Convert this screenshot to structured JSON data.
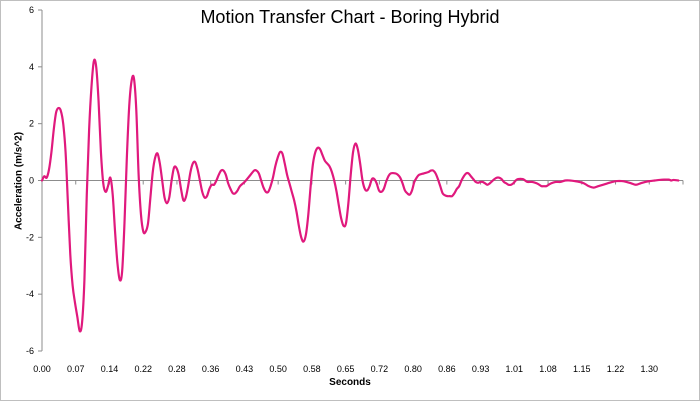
{
  "chart_data": {
    "type": "line",
    "title": "Motion Transfer Chart - Boring Hybrid",
    "xlabel": "Seconds",
    "ylabel": "Acceleration (m/s^2)",
    "ylim": [
      -6,
      6
    ],
    "xlim": [
      0,
      1.36
    ],
    "yticks": [
      "6",
      "4",
      "2",
      "0",
      "-2",
      "-4",
      "-6"
    ],
    "xticks": [
      "0.00",
      "0.07",
      "0.14",
      "0.22",
      "0.28",
      "0.36",
      "0.43",
      "0.50",
      "0.58",
      "0.65",
      "0.72",
      "0.80",
      "0.86",
      "0.93",
      "1.01",
      "1.08",
      "1.15",
      "1.22",
      "1.30"
    ],
    "grid": false,
    "line_color": "#e0197d",
    "series": [
      {
        "points": [
          [
            0.0,
            0.0
          ],
          [
            0.005,
            0.15
          ],
          [
            0.01,
            0.1
          ],
          [
            0.015,
            0.4
          ],
          [
            0.02,
            1.0
          ],
          [
            0.025,
            1.8
          ],
          [
            0.03,
            2.4
          ],
          [
            0.035,
            2.55
          ],
          [
            0.04,
            2.45
          ],
          [
            0.045,
            2.0
          ],
          [
            0.05,
            1.0
          ],
          [
            0.055,
            -0.8
          ],
          [
            0.06,
            -2.6
          ],
          [
            0.065,
            -3.7
          ],
          [
            0.07,
            -4.3
          ],
          [
            0.075,
            -4.8
          ],
          [
            0.08,
            -5.3
          ],
          [
            0.085,
            -5.0
          ],
          [
            0.09,
            -3.5
          ],
          [
            0.095,
            -0.5
          ],
          [
            0.1,
            1.8
          ],
          [
            0.105,
            3.3
          ],
          [
            0.11,
            4.2
          ],
          [
            0.115,
            4.0
          ],
          [
            0.12,
            2.8
          ],
          [
            0.125,
            1.0
          ],
          [
            0.13,
            -0.1
          ],
          [
            0.135,
            -0.4
          ],
          [
            0.14,
            -0.2
          ],
          [
            0.145,
            0.1
          ],
          [
            0.15,
            -0.5
          ],
          [
            0.155,
            -1.8
          ],
          [
            0.16,
            -2.9
          ],
          [
            0.165,
            -3.5
          ],
          [
            0.17,
            -3.2
          ],
          [
            0.175,
            -1.5
          ],
          [
            0.18,
            0.8
          ],
          [
            0.185,
            2.6
          ],
          [
            0.19,
            3.5
          ],
          [
            0.195,
            3.6
          ],
          [
            0.2,
            2.5
          ],
          [
            0.205,
            0.2
          ],
          [
            0.21,
            -1.2
          ],
          [
            0.215,
            -1.8
          ],
          [
            0.22,
            -1.8
          ],
          [
            0.225,
            -1.5
          ],
          [
            0.23,
            -0.6
          ],
          [
            0.235,
            0.3
          ],
          [
            0.24,
            0.8
          ],
          [
            0.245,
            0.95
          ],
          [
            0.25,
            0.6
          ],
          [
            0.255,
            0.0
          ],
          [
            0.26,
            -0.6
          ],
          [
            0.265,
            -0.8
          ],
          [
            0.27,
            -0.6
          ],
          [
            0.275,
            0.0
          ],
          [
            0.28,
            0.45
          ],
          [
            0.285,
            0.45
          ],
          [
            0.29,
            0.2
          ],
          [
            0.295,
            -0.3
          ],
          [
            0.3,
            -0.7
          ],
          [
            0.305,
            -0.6
          ],
          [
            0.31,
            -0.2
          ],
          [
            0.315,
            0.3
          ],
          [
            0.32,
            0.6
          ],
          [
            0.325,
            0.65
          ],
          [
            0.33,
            0.4
          ],
          [
            0.335,
            0.0
          ],
          [
            0.34,
            -0.4
          ],
          [
            0.345,
            -0.6
          ],
          [
            0.35,
            -0.55
          ],
          [
            0.355,
            -0.3
          ],
          [
            0.36,
            -0.15
          ],
          [
            0.365,
            -0.15
          ],
          [
            0.37,
            0.0
          ],
          [
            0.375,
            0.2
          ],
          [
            0.38,
            0.35
          ],
          [
            0.385,
            0.35
          ],
          [
            0.39,
            0.2
          ],
          [
            0.395,
            -0.1
          ],
          [
            0.4,
            -0.3
          ],
          [
            0.405,
            -0.45
          ],
          [
            0.41,
            -0.45
          ],
          [
            0.415,
            -0.35
          ],
          [
            0.42,
            -0.2
          ],
          [
            0.43,
            -0.05
          ],
          [
            0.44,
            0.15
          ],
          [
            0.45,
            0.35
          ],
          [
            0.455,
            0.35
          ],
          [
            0.46,
            0.25
          ],
          [
            0.465,
            0.0
          ],
          [
            0.47,
            -0.25
          ],
          [
            0.475,
            -0.4
          ],
          [
            0.48,
            -0.4
          ],
          [
            0.485,
            -0.2
          ],
          [
            0.49,
            0.1
          ],
          [
            0.495,
            0.5
          ],
          [
            0.5,
            0.8
          ],
          [
            0.505,
            1.0
          ],
          [
            0.51,
            0.95
          ],
          [
            0.515,
            0.6
          ],
          [
            0.52,
            0.2
          ],
          [
            0.525,
            -0.1
          ],
          [
            0.53,
            -0.4
          ],
          [
            0.535,
            -0.7
          ],
          [
            0.54,
            -1.1
          ],
          [
            0.545,
            -1.6
          ],
          [
            0.55,
            -2.0
          ],
          [
            0.555,
            -2.15
          ],
          [
            0.56,
            -1.9
          ],
          [
            0.565,
            -1.2
          ],
          [
            0.57,
            -0.2
          ],
          [
            0.575,
            0.6
          ],
          [
            0.58,
            1.0
          ],
          [
            0.585,
            1.15
          ],
          [
            0.59,
            1.1
          ],
          [
            0.595,
            0.9
          ],
          [
            0.6,
            0.7
          ],
          [
            0.605,
            0.6
          ],
          [
            0.61,
            0.5
          ],
          [
            0.615,
            0.3
          ],
          [
            0.62,
            0.0
          ],
          [
            0.625,
            -0.4
          ],
          [
            0.63,
            -0.9
          ],
          [
            0.635,
            -1.35
          ],
          [
            0.64,
            -1.6
          ],
          [
            0.645,
            -1.5
          ],
          [
            0.65,
            -0.8
          ],
          [
            0.655,
            0.2
          ],
          [
            0.66,
            1.0
          ],
          [
            0.665,
            1.3
          ],
          [
            0.67,
            1.1
          ],
          [
            0.675,
            0.6
          ],
          [
            0.68,
            0.0
          ],
          [
            0.685,
            -0.3
          ],
          [
            0.69,
            -0.35
          ],
          [
            0.695,
            -0.2
          ],
          [
            0.7,
            0.05
          ],
          [
            0.705,
            0.05
          ],
          [
            0.71,
            -0.1
          ],
          [
            0.715,
            -0.35
          ],
          [
            0.72,
            -0.4
          ],
          [
            0.725,
            -0.3
          ],
          [
            0.73,
            -0.05
          ],
          [
            0.735,
            0.15
          ],
          [
            0.74,
            0.25
          ],
          [
            0.75,
            0.25
          ],
          [
            0.755,
            0.2
          ],
          [
            0.76,
            0.1
          ],
          [
            0.765,
            -0.1
          ],
          [
            0.77,
            -0.35
          ],
          [
            0.775,
            -0.45
          ],
          [
            0.78,
            -0.5
          ],
          [
            0.785,
            -0.35
          ],
          [
            0.79,
            -0.05
          ],
          [
            0.795,
            0.1
          ],
          [
            0.8,
            0.2
          ],
          [
            0.81,
            0.25
          ],
          [
            0.82,
            0.3
          ],
          [
            0.825,
            0.35
          ],
          [
            0.83,
            0.35
          ],
          [
            0.835,
            0.25
          ],
          [
            0.84,
            0.05
          ],
          [
            0.845,
            -0.2
          ],
          [
            0.85,
            -0.45
          ],
          [
            0.855,
            -0.52
          ],
          [
            0.86,
            -0.55
          ],
          [
            0.865,
            -0.55
          ],
          [
            0.87,
            -0.55
          ],
          [
            0.875,
            -0.45
          ],
          [
            0.88,
            -0.3
          ],
          [
            0.885,
            -0.2
          ],
          [
            0.89,
            0.0
          ],
          [
            0.895,
            0.15
          ],
          [
            0.9,
            0.25
          ],
          [
            0.905,
            0.25
          ],
          [
            0.91,
            0.15
          ],
          [
            0.915,
            0.05
          ],
          [
            0.92,
            -0.05
          ],
          [
            0.925,
            -0.08
          ],
          [
            0.93,
            -0.05
          ],
          [
            0.935,
            -0.05
          ],
          [
            0.94,
            -0.1
          ],
          [
            0.945,
            -0.15
          ],
          [
            0.95,
            -0.1
          ],
          [
            0.96,
            0.05
          ],
          [
            0.965,
            0.1
          ],
          [
            0.97,
            0.1
          ],
          [
            0.975,
            0.05
          ],
          [
            0.98,
            -0.05
          ],
          [
            0.985,
            -0.1
          ],
          [
            0.99,
            -0.15
          ],
          [
            0.995,
            -0.15
          ],
          [
            1.0,
            -0.1
          ],
          [
            1.005,
            0.0
          ],
          [
            1.01,
            0.05
          ],
          [
            1.02,
            0.05
          ],
          [
            1.025,
            0.0
          ],
          [
            1.03,
            -0.05
          ],
          [
            1.04,
            -0.05
          ],
          [
            1.05,
            -0.1
          ],
          [
            1.055,
            -0.15
          ],
          [
            1.06,
            -0.2
          ],
          [
            1.065,
            -0.2
          ],
          [
            1.07,
            -0.2
          ],
          [
            1.075,
            -0.15
          ],
          [
            1.08,
            -0.1
          ],
          [
            1.09,
            -0.05
          ],
          [
            1.1,
            -0.05
          ],
          [
            1.11,
            0.0
          ],
          [
            1.12,
            0.0
          ],
          [
            1.13,
            -0.02
          ],
          [
            1.14,
            -0.05
          ],
          [
            1.15,
            -0.1
          ],
          [
            1.16,
            -0.2
          ],
          [
            1.17,
            -0.25
          ],
          [
            1.18,
            -0.2
          ],
          [
            1.19,
            -0.15
          ],
          [
            1.2,
            -0.1
          ],
          [
            1.21,
            -0.05
          ],
          [
            1.22,
            -0.02
          ],
          [
            1.23,
            -0.02
          ],
          [
            1.24,
            -0.05
          ],
          [
            1.25,
            -0.1
          ],
          [
            1.26,
            -0.15
          ],
          [
            1.27,
            -0.1
          ],
          [
            1.28,
            -0.05
          ],
          [
            1.29,
            -0.02
          ],
          [
            1.3,
            0.0
          ],
          [
            1.31,
            0.02
          ],
          [
            1.32,
            0.03
          ],
          [
            1.33,
            0.03
          ],
          [
            1.335,
            0.0
          ],
          [
            1.34,
            0.02
          ],
          [
            1.35,
            0.0
          ]
        ]
      }
    ]
  }
}
